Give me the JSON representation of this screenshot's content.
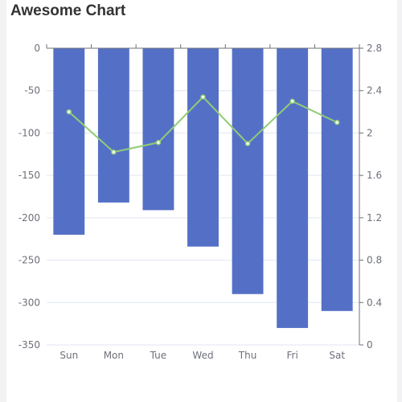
{
  "chart_data": {
    "type": "bar",
    "title": "Awesome Chart",
    "categories": [
      "Sun",
      "Mon",
      "Tue",
      "Wed",
      "Thu",
      "Fri",
      "Sat"
    ],
    "series": [
      {
        "type": "bar",
        "axis": "left",
        "values": [
          -220,
          -182,
          -191,
          -234,
          -290,
          -330,
          -310
        ],
        "color": "#5470c6"
      },
      {
        "type": "line",
        "axis": "right",
        "values": [
          2.2,
          1.82,
          1.91,
          2.34,
          1.9,
          2.3,
          2.1
        ],
        "color": "#91cc75"
      }
    ],
    "y_left": {
      "ylim": [
        -350,
        0
      ],
      "ticks": [
        0,
        -50,
        -100,
        -150,
        -200,
        -250,
        -300,
        -350
      ]
    },
    "y_right": {
      "ylim": [
        0,
        2.8
      ],
      "ticks": [
        2.8,
        2.4,
        2,
        1.6,
        1.2,
        0.8,
        0.4,
        0
      ]
    },
    "xlabel": "",
    "ylabel": "",
    "grid": true,
    "colors": {
      "grid": "#e0e6f1",
      "axis": "#6e7079",
      "text": "#6e7079",
      "title": "#333333"
    }
  }
}
